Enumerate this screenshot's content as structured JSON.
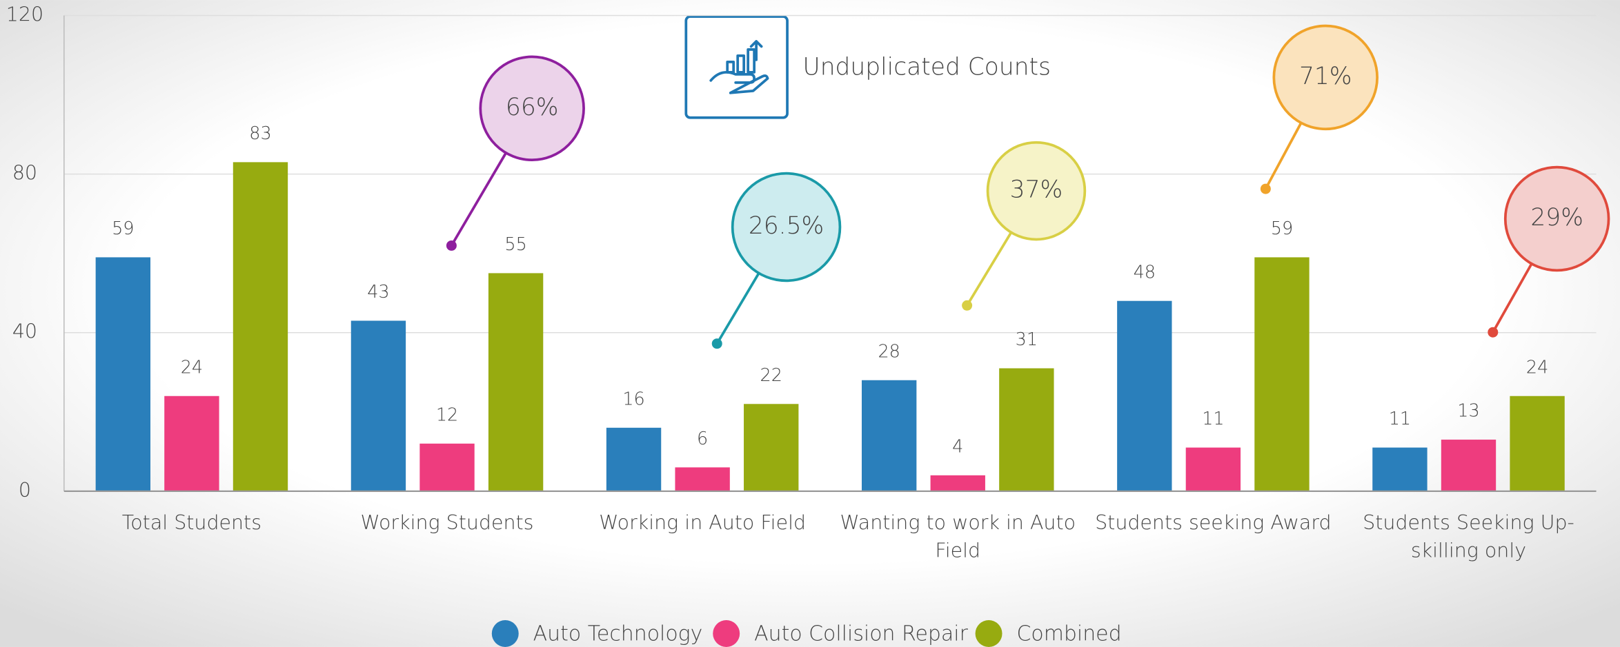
{
  "chart_data": {
    "type": "bar",
    "title": "Unduplicated Counts",
    "categories": [
      "Total Students",
      "Working Students",
      "Working in Auto Field",
      "Wanting to work in Auto Field",
      "Students seeking Award",
      "Students Seeking Up-skilling only"
    ],
    "series": [
      {
        "name": "Auto Technology",
        "color": "#2a7fbb",
        "values": [
          59,
          43,
          16,
          28,
          48,
          11
        ]
      },
      {
        "name": "Auto Collision Repair",
        "color": "#ee3c7e",
        "values": [
          24,
          12,
          6,
          4,
          11,
          13
        ]
      },
      {
        "name": "Combined",
        "color": "#97ab10",
        "values": [
          83,
          55,
          22,
          31,
          59,
          24
        ]
      }
    ],
    "ylim": [
      0,
      120
    ],
    "yticks": [
      0,
      40,
      80,
      120
    ],
    "grid": true,
    "legend": "bottom",
    "annotations": [
      {
        "text": "66%",
        "color": "#8e1f9e"
      },
      {
        "text": "26.5%",
        "color": "#1a9aa8"
      },
      {
        "text": "37%",
        "color": "#d8cf45"
      },
      {
        "text": "71%",
        "color": "#f0a32a"
      },
      {
        "text": "29%",
        "color": "#e04a3c"
      }
    ]
  }
}
